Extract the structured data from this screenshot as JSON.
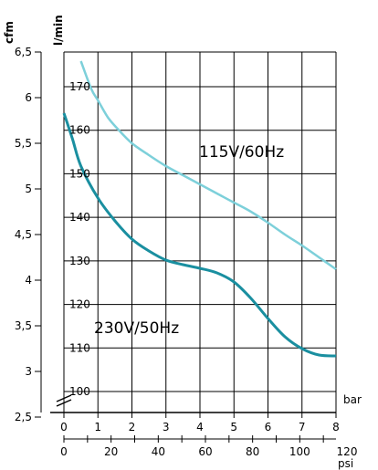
{
  "chart_data": {
    "type": "line",
    "axes": {
      "x_bar": {
        "label": "bar",
        "ticks": [
          "0",
          "1",
          "2",
          "3",
          "4",
          "5",
          "6",
          "7",
          "8"
        ],
        "range": [
          0,
          8
        ]
      },
      "x_psi": {
        "label": "psi",
        "ticks": [
          "0",
          "20",
          "40",
          "60",
          "80",
          "100",
          "120"
        ],
        "range": [
          0,
          120
        ]
      },
      "y_cfm": {
        "label": "cfm",
        "ticks": [
          "6,5",
          "6",
          "5,5",
          "5",
          "4,5",
          "4",
          "3,5",
          "3",
          "2,5"
        ],
        "range": [
          2.5,
          6.5
        ]
      },
      "y_lmin": {
        "label": "l/min",
        "ticks": [
          "170",
          "160",
          "150",
          "140",
          "130",
          "120",
          "110",
          "100"
        ],
        "range": [
          100,
          170
        ]
      }
    },
    "grid": true,
    "series": [
      {
        "name": "115V/60Hz",
        "color": "#7dd0da",
        "x": [
          0.5,
          0.8,
          1.0,
          1.3,
          1.6,
          2.0,
          2.5,
          3.0,
          3.5,
          4.0,
          4.5,
          5.0,
          5.5,
          6.0,
          6.5,
          7.0,
          7.5,
          8.0
        ],
        "y": [
          6.4,
          6.1,
          5.97,
          5.78,
          5.65,
          5.5,
          5.37,
          5.25,
          5.15,
          5.05,
          4.95,
          4.85,
          4.75,
          4.63,
          4.5,
          4.38,
          4.25,
          4.12
        ]
      },
      {
        "name": "230V/50Hz",
        "color": "#1a8fa0",
        "x": [
          0.0,
          0.25,
          0.5,
          1.0,
          1.5,
          2.0,
          2.5,
          3.0,
          3.5,
          4.0,
          4.5,
          5.0,
          5.5,
          6.0,
          6.5,
          7.0,
          7.5,
          8.0
        ],
        "y": [
          5.83,
          5.55,
          5.25,
          4.9,
          4.65,
          4.45,
          4.32,
          4.22,
          4.17,
          4.13,
          4.08,
          3.98,
          3.8,
          3.58,
          3.38,
          3.25,
          3.18,
          3.17
        ]
      }
    ]
  },
  "labels": {
    "cfm": "cfm",
    "lmin": "l/min",
    "bar": "bar",
    "psi": "psi",
    "series1": "115V/60Hz",
    "series2": "230V/50Hz"
  }
}
